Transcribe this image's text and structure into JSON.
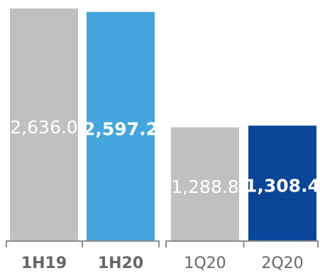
{
  "chart_data": {
    "type": "bar",
    "title": "",
    "xlabel": "",
    "ylabel": "",
    "ylim": [
      0,
      2700
    ],
    "grid": false,
    "legend": "none",
    "groups": [
      {
        "bars": [
          {
            "category": "1H19",
            "value": 2636.0,
            "label": "2,636.0",
            "color": "#c0c0c0",
            "label_color": "#ffffff",
            "label_bold": false,
            "tick_bold": true
          },
          {
            "category": "1H20",
            "value": 2597.2,
            "label": "2,597.2",
            "color": "#45a6dd",
            "label_color": "#ffffff",
            "label_bold": true,
            "tick_bold": true
          }
        ]
      },
      {
        "bars": [
          {
            "category": "1Q20",
            "value": 1288.8,
            "label": "1,288.8",
            "color": "#c0c0c0",
            "label_color": "#ffffff",
            "label_bold": false,
            "tick_bold": false
          },
          {
            "category": "2Q20",
            "value": 1308.4,
            "label": "1,308.4",
            "color": "#0a4697",
            "label_color": "#ffffff",
            "label_bold": true,
            "tick_bold": false
          }
        ]
      }
    ],
    "colors": {
      "axis": "#8c8c8c",
      "tick_label": "#666666"
    }
  }
}
